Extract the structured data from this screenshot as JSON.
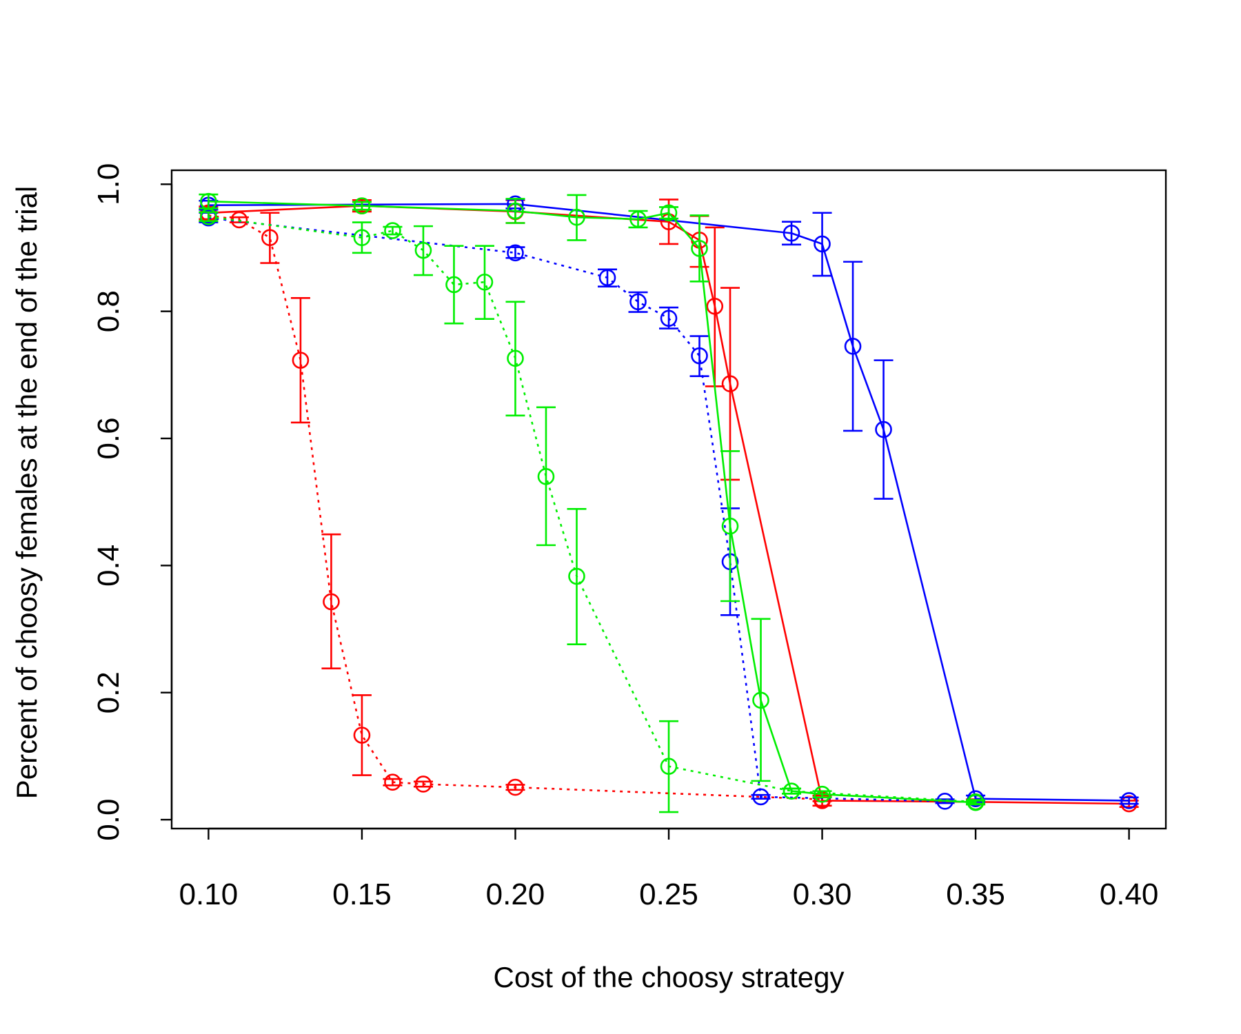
{
  "chart_data": {
    "type": "line",
    "title": "",
    "xlabel": "Cost of the choosy strategy",
    "ylabel": "Percent of choosy females at the end of the trial",
    "xlim": [
      0.088,
      0.412
    ],
    "ylim": [
      -0.014,
      1.022
    ],
    "xticks": [
      0.1,
      0.15,
      0.2,
      0.25,
      0.3,
      0.35,
      0.4
    ],
    "xtick_labels": [
      "0.10",
      "0.15",
      "0.20",
      "0.25",
      "0.30",
      "0.35",
      "0.40"
    ],
    "yticks": [
      0.0,
      0.2,
      0.4,
      0.6,
      0.8,
      1.0
    ],
    "ytick_labels": [
      "0.0",
      "0.2",
      "0.4",
      "0.6",
      "0.8",
      "1.0"
    ],
    "grid": false,
    "legend": null,
    "series": [
      {
        "name": "red-dotted",
        "color": "#ff0000",
        "linestyle": "dotted",
        "points": [
          {
            "x": 0.1,
            "y": 0.951,
            "lo": 0.942,
            "hi": 0.96
          },
          {
            "x": 0.11,
            "y": 0.944,
            "lo": 0.94,
            "hi": 0.948
          },
          {
            "x": 0.12,
            "y": 0.916,
            "lo": 0.876,
            "hi": 0.955
          },
          {
            "x": 0.13,
            "y": 0.723,
            "lo": 0.625,
            "hi": 0.821
          },
          {
            "x": 0.14,
            "y": 0.343,
            "lo": 0.238,
            "hi": 0.449
          },
          {
            "x": 0.15,
            "y": 0.133,
            "lo": 0.07,
            "hi": 0.196
          },
          {
            "x": 0.16,
            "y": 0.059,
            "lo": 0.054,
            "hi": 0.064
          },
          {
            "x": 0.17,
            "y": 0.056,
            "lo": 0.052,
            "hi": 0.06
          },
          {
            "x": 0.2,
            "y": 0.051,
            "lo": 0.047,
            "hi": 0.055
          },
          {
            "x": 0.3,
            "y": 0.032,
            "lo": 0.029,
            "hi": 0.035
          }
        ]
      },
      {
        "name": "red-solid",
        "color": "#ff0000",
        "linestyle": "solid",
        "points": [
          {
            "x": 0.1,
            "y": 0.955,
            "lo": 0.945,
            "hi": 0.965
          },
          {
            "x": 0.15,
            "y": 0.966,
            "lo": 0.957,
            "hi": 0.975
          },
          {
            "x": 0.2,
            "y": 0.957,
            "lo": 0.939,
            "hi": 0.975
          },
          {
            "x": 0.25,
            "y": 0.941,
            "lo": 0.906,
            "hi": 0.976
          },
          {
            "x": 0.26,
            "y": 0.912,
            "lo": 0.87,
            "hi": 0.95
          },
          {
            "x": 0.265,
            "y": 0.808,
            "lo": 0.682,
            "hi": 0.932
          },
          {
            "x": 0.27,
            "y": 0.686,
            "lo": 0.535,
            "hi": 0.837
          },
          {
            "x": 0.3,
            "y": 0.03,
            "lo": 0.022,
            "hi": 0.038
          },
          {
            "x": 0.35,
            "y": 0.028,
            "lo": 0.024,
            "hi": 0.032
          },
          {
            "x": 0.4,
            "y": 0.025,
            "lo": 0.02,
            "hi": 0.03
          }
        ]
      },
      {
        "name": "blue-dotted",
        "color": "#0000ff",
        "linestyle": "dotted",
        "points": [
          {
            "x": 0.1,
            "y": 0.947,
            "lo": 0.94,
            "hi": 0.955
          },
          {
            "x": 0.2,
            "y": 0.892,
            "lo": 0.884,
            "hi": 0.901
          },
          {
            "x": 0.23,
            "y": 0.853,
            "lo": 0.839,
            "hi": 0.866
          },
          {
            "x": 0.24,
            "y": 0.815,
            "lo": 0.799,
            "hi": 0.83
          },
          {
            "x": 0.25,
            "y": 0.789,
            "lo": 0.773,
            "hi": 0.806
          },
          {
            "x": 0.26,
            "y": 0.73,
            "lo": 0.698,
            "hi": 0.761
          },
          {
            "x": 0.27,
            "y": 0.406,
            "lo": 0.322,
            "hi": 0.49
          },
          {
            "x": 0.28,
            "y": 0.036,
            "lo": 0.033,
            "hi": 0.039
          },
          {
            "x": 0.34,
            "y": 0.029,
            "lo": 0.026,
            "hi": 0.032
          }
        ]
      },
      {
        "name": "blue-solid",
        "color": "#0000ff",
        "linestyle": "solid",
        "points": [
          {
            "x": 0.1,
            "y": 0.967,
            "lo": 0.96,
            "hi": 0.974
          },
          {
            "x": 0.2,
            "y": 0.969,
            "lo": 0.962,
            "hi": 0.976
          },
          {
            "x": 0.29,
            "y": 0.923,
            "lo": 0.905,
            "hi": 0.941
          },
          {
            "x": 0.3,
            "y": 0.906,
            "lo": 0.856,
            "hi": 0.955
          },
          {
            "x": 0.31,
            "y": 0.745,
            "lo": 0.612,
            "hi": 0.878
          },
          {
            "x": 0.32,
            "y": 0.614,
            "lo": 0.505,
            "hi": 0.723
          },
          {
            "x": 0.35,
            "y": 0.033,
            "lo": 0.028,
            "hi": 0.038
          },
          {
            "x": 0.4,
            "y": 0.03,
            "lo": 0.025,
            "hi": 0.035
          }
        ]
      },
      {
        "name": "green-dotted",
        "color": "#00ee00",
        "linestyle": "dotted",
        "points": [
          {
            "x": 0.1,
            "y": 0.949,
            "lo": 0.942,
            "hi": 0.956
          },
          {
            "x": 0.15,
            "y": 0.916,
            "lo": 0.892,
            "hi": 0.94
          },
          {
            "x": 0.16,
            "y": 0.927,
            "lo": 0.921,
            "hi": 0.933
          },
          {
            "x": 0.17,
            "y": 0.896,
            "lo": 0.857,
            "hi": 0.934
          },
          {
            "x": 0.18,
            "y": 0.842,
            "lo": 0.781,
            "hi": 0.903
          },
          {
            "x": 0.19,
            "y": 0.846,
            "lo": 0.788,
            "hi": 0.903
          },
          {
            "x": 0.2,
            "y": 0.726,
            "lo": 0.636,
            "hi": 0.815
          },
          {
            "x": 0.21,
            "y": 0.54,
            "lo": 0.432,
            "hi": 0.649
          },
          {
            "x": 0.22,
            "y": 0.383,
            "lo": 0.276,
            "hi": 0.489
          },
          {
            "x": 0.25,
            "y": 0.084,
            "lo": 0.012,
            "hi": 0.155
          },
          {
            "x": 0.29,
            "y": 0.045,
            "lo": 0.041,
            "hi": 0.049
          },
          {
            "x": 0.35,
            "y": 0.028,
            "lo": 0.025,
            "hi": 0.031
          }
        ]
      },
      {
        "name": "green-solid",
        "color": "#00ee00",
        "linestyle": "solid",
        "points": [
          {
            "x": 0.1,
            "y": 0.973,
            "lo": 0.962,
            "hi": 0.984
          },
          {
            "x": 0.15,
            "y": 0.966,
            "lo": 0.96,
            "hi": 0.972
          },
          {
            "x": 0.2,
            "y": 0.958,
            "lo": 0.939,
            "hi": 0.977
          },
          {
            "x": 0.22,
            "y": 0.948,
            "lo": 0.912,
            "hi": 0.983
          },
          {
            "x": 0.24,
            "y": 0.945,
            "lo": 0.932,
            "hi": 0.958
          },
          {
            "x": 0.25,
            "y": 0.955,
            "lo": 0.946,
            "hi": 0.964
          },
          {
            "x": 0.26,
            "y": 0.899,
            "lo": 0.847,
            "hi": 0.951
          },
          {
            "x": 0.27,
            "y": 0.462,
            "lo": 0.344,
            "hi": 0.58
          },
          {
            "x": 0.28,
            "y": 0.188,
            "lo": 0.061,
            "hi": 0.316
          },
          {
            "x": 0.29,
            "y": 0.045,
            "lo": 0.041,
            "hi": 0.049
          },
          {
            "x": 0.3,
            "y": 0.04,
            "lo": 0.035,
            "hi": 0.045
          },
          {
            "x": 0.35,
            "y": 0.027,
            "lo": 0.024,
            "hi": 0.03
          }
        ]
      }
    ]
  }
}
